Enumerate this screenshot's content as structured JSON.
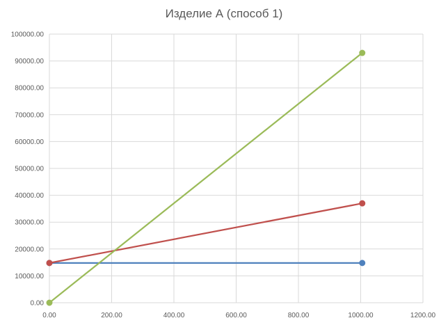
{
  "chart_data": {
    "type": "line",
    "title": "Изделие А (способ 1)",
    "xlabel": "",
    "ylabel": "",
    "xlim": [
      0,
      1200
    ],
    "ylim": [
      0,
      100000
    ],
    "x_ticks": [
      "0.00",
      "200.00",
      "400.00",
      "600.00",
      "800.00",
      "1000.00",
      "1200.00"
    ],
    "y_ticks": [
      "0.00",
      "10000.00",
      "20000.00",
      "30000.00",
      "40000.00",
      "50000.00",
      "60000.00",
      "70000.00",
      "80000.00",
      "90000.00",
      "100000.00"
    ],
    "grid": true,
    "legend": "none",
    "series": [
      {
        "color": "#4f81bd",
        "x": [
          0,
          1005
        ],
        "y": [
          14800,
          14800
        ]
      },
      {
        "color": "#c0504d",
        "x": [
          0,
          1005
        ],
        "y": [
          14800,
          37000
        ]
      },
      {
        "color": "#9bbb59",
        "x": [
          0,
          1005
        ],
        "y": [
          0,
          93000
        ]
      }
    ]
  }
}
